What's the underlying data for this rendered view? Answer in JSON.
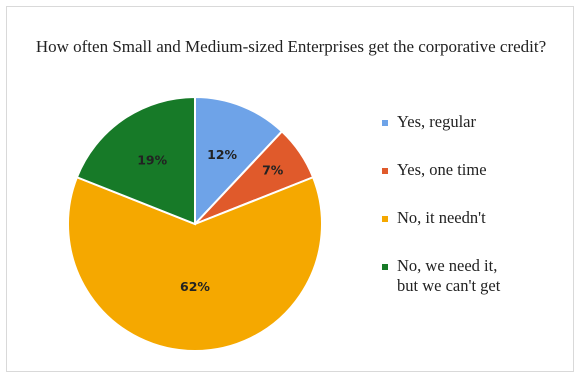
{
  "chart_data": {
    "type": "pie",
    "title": "How often Small and Medium-sized Enterprises get the corporative credit?",
    "categories": [
      "Yes, regular",
      "Yes, one time",
      "No, it needn't",
      "No, we need it,\nbut we can't get"
    ],
    "values": [
      12,
      7,
      62,
      19
    ],
    "labels": [
      "12%",
      "7%",
      "62%",
      "19%"
    ],
    "colors": [
      "#6ea3e8",
      "#e05a2b",
      "#f5a800",
      "#177a28"
    ],
    "legend_position": "right"
  }
}
